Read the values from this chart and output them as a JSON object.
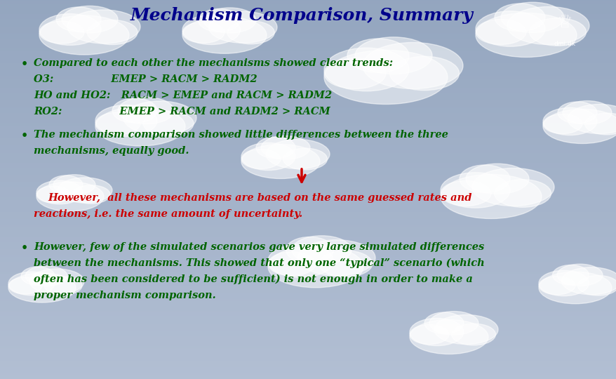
{
  "title": "Mechanism Comparison, Summary",
  "title_color": "#00008B",
  "title_fontsize": 18,
  "bg_color_top": "#a0b4cc",
  "bg_color_bottom": "#c0ccd8",
  "bullet1_line1": "Compared to each other the mechanisms showed clear trends:",
  "bullet1_line2": "O3:                EMEP > RACM > RADM2",
  "bullet1_line3": "HO and HO2:   RACM > EMEP and RACM > RADM2",
  "bullet1_line4": "RO2:                EMEP > RACM and RADM2 > RACM",
  "bullet2_line1": "The mechanism comparison showed little differences between the three",
  "bullet2_line2": "mechanisms, equally good.",
  "however_line1": "However,  all these mechanisms are based on the same guessed rates and",
  "however_line2": "reactions, i.e. the same amount of uncertainty.",
  "bullet3_line1": "However, few of the simulated scenarios gave very large simulated differences",
  "bullet3_line2": "between the mechanisms. This showed that only one “typical” scenario (which",
  "bullet3_line3": "often has been considered to be sufficient) is not enough in order to make a",
  "bullet3_line4": "proper mechanism comparison.",
  "green": "#006400",
  "red": "#CC0000",
  "logo_color": "#1a3a8a",
  "fontsize": 10.5
}
